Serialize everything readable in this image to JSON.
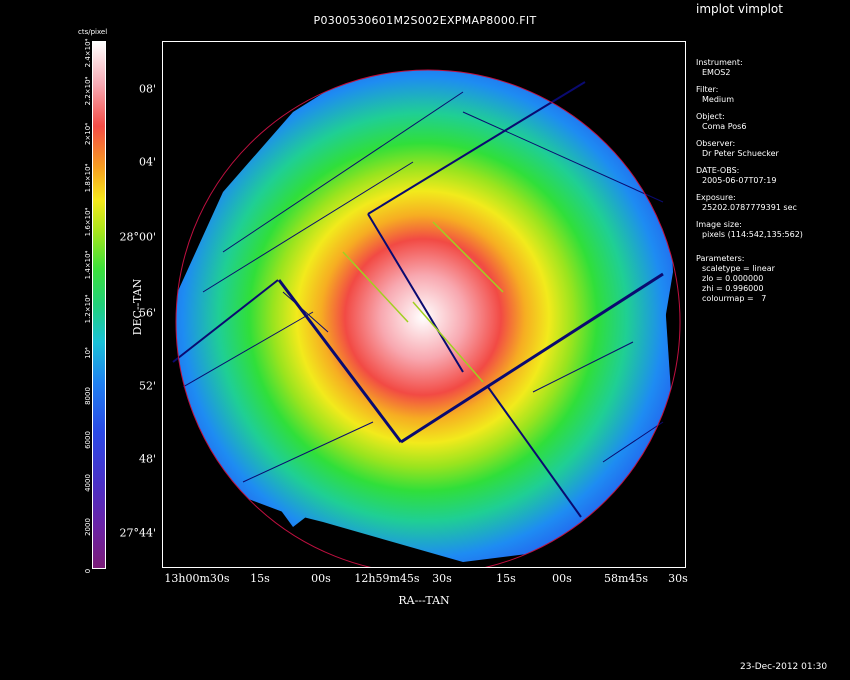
{
  "app_label": "implot vimplot",
  "title": "P0300530601M2S002EXPMAP8000.FIT",
  "colorbar": {
    "unit": "cts/pixel",
    "ticks": [
      "0",
      "2000",
      "4000",
      "6000",
      "8000",
      "10⁴",
      "1.2×10⁴",
      "1.4×10⁴",
      "1.6×10⁴",
      "1.8×10⁴",
      "2×10⁴",
      "2.2×10⁴",
      "2.4×10⁴"
    ],
    "colormap": [
      "#7a1d78",
      "#6a23a6",
      "#4a30c6",
      "#2a4ae6",
      "#1f7ff0",
      "#19c2d8",
      "#20d07a",
      "#3de03a",
      "#a8e51c",
      "#f6e81c",
      "#f6a020",
      "#f44c46",
      "#f6aab4",
      "#ffffff"
    ]
  },
  "axes": {
    "xlabel": "RA---TAN",
    "ylabel": "DEC--TAN",
    "x_ticks": [
      "13h00m30s",
      "15s",
      "00s",
      "12h59m45s",
      "30s",
      "15s",
      "00s",
      "58m45s",
      "30s"
    ],
    "y_ticks": [
      "08'",
      "04'",
      "28°00'",
      "56'",
      "52'",
      "48'",
      "27°44'"
    ]
  },
  "info": [
    {
      "key": "Instrument:",
      "value": "EMOS2"
    },
    {
      "key": "Filter:",
      "value": "Medium"
    },
    {
      "key": "Object:",
      "value": "Coma Pos6"
    },
    {
      "key": "Observer:",
      "value": "Dr Peter Schuecker"
    },
    {
      "key": "DATE-OBS:",
      "value": "2005-06-07T07:19"
    },
    {
      "key": "Exposure:",
      "value": "25202.0787779391 sec"
    },
    {
      "key": "Image size:",
      "value": "pixels (114:542,135:562)"
    }
  ],
  "parameters": {
    "label": "Parameters:",
    "scaletype": "scaletype = linear",
    "zlo": "zlo = 0.000000",
    "zhi": "zhi = 0.996000",
    "colourmap": "colourmap =   7"
  },
  "footer": "23-Dec-2012 01:30"
}
